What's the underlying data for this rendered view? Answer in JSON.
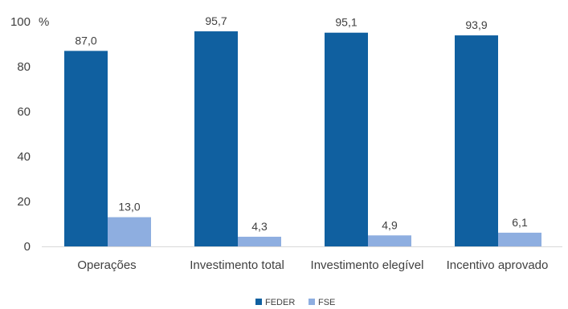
{
  "chart_data": {
    "type": "bar",
    "categories": [
      "Operações",
      "Investimento total",
      "Investimento elegível",
      "Incentivo aprovado"
    ],
    "series": [
      {
        "name": "FEDER",
        "values": [
          87.0,
          95.7,
          95.1,
          93.9
        ],
        "labels": [
          "87,0",
          "95,7",
          "95,1",
          "93,9"
        ],
        "color": "#1060a0"
      },
      {
        "name": "FSE",
        "values": [
          13.0,
          4.3,
          4.9,
          6.1
        ],
        "labels": [
          "13,0",
          "4,3",
          "4,9",
          "6,1"
        ],
        "color": "#8eaee0"
      }
    ],
    "y_unit": "%",
    "ylim": [
      0,
      100
    ],
    "yticks": [
      "0",
      "20",
      "40",
      "60",
      "80",
      "100"
    ],
    "grid": false,
    "legend_position": "bottom"
  }
}
